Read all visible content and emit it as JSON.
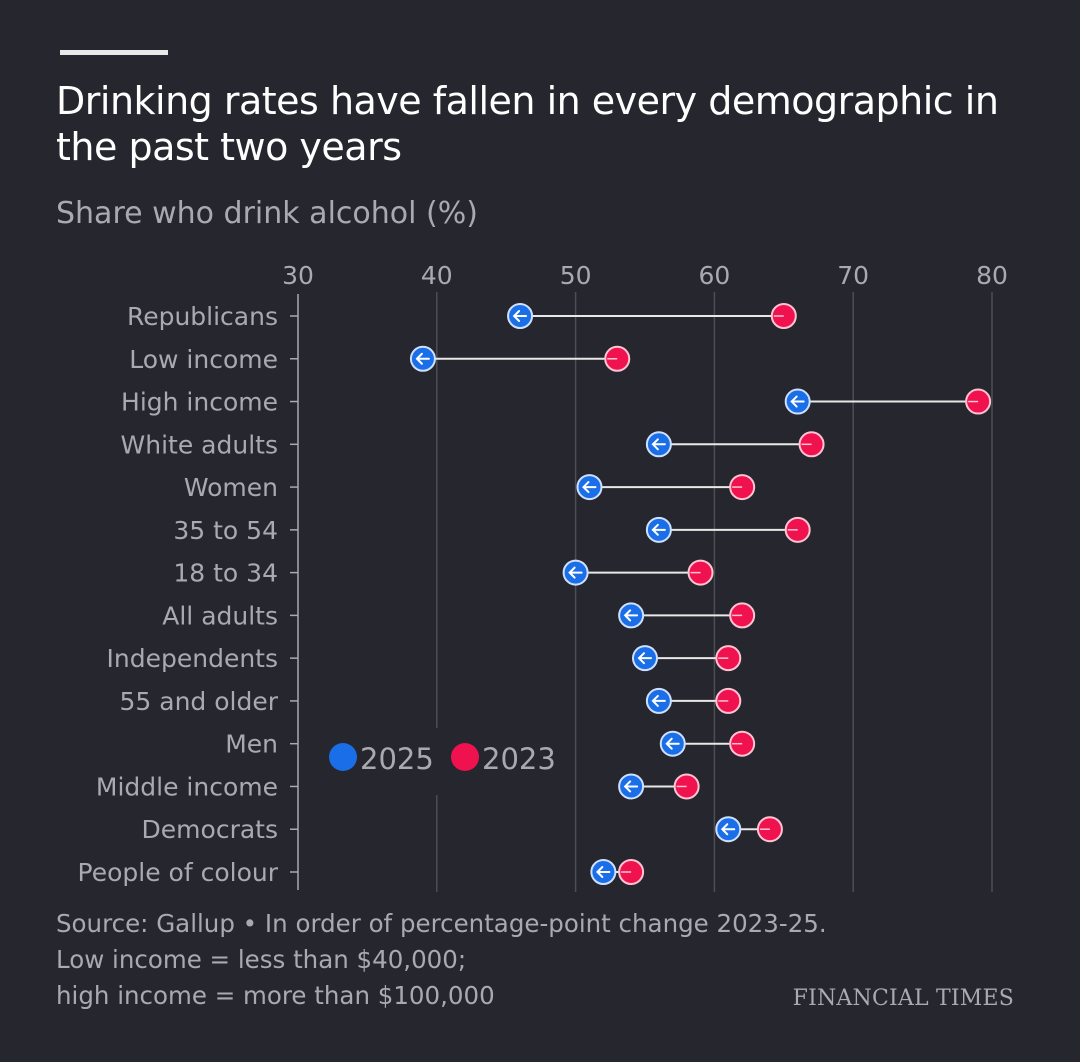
{
  "chart_data": {
    "type": "dot-arrow",
    "title": "Drinking rates have fallen in every demographic in the past two years",
    "subtitle": "Share who drink alcohol (%)",
    "xlim": [
      30,
      80
    ],
    "xticks": [
      "30",
      "40",
      "50",
      "60",
      "70",
      "80"
    ],
    "grid": true,
    "legend_position": "center-left",
    "legend": [
      {
        "name": "2025",
        "color": "#1a6ee8"
      },
      {
        "name": "2023",
        "color": "#f0114f"
      }
    ],
    "categories": [
      "Republicans",
      "Low income",
      "High income",
      "White adults",
      "Women",
      "35 to 54",
      "18 to 34",
      "All adults",
      "Independents",
      "55 and older",
      "Men",
      "Middle income",
      "Democrats",
      "People of colour"
    ],
    "series": [
      {
        "name": "2025",
        "values": [
          46,
          39,
          66,
          56,
          51,
          56,
          50,
          54,
          55,
          56,
          57,
          54,
          61,
          52
        ]
      },
      {
        "name": "2023",
        "values": [
          65,
          53,
          79,
          67,
          62,
          66,
          59,
          62,
          61,
          61,
          62,
          58,
          64,
          54
        ]
      }
    ]
  },
  "footer": {
    "source_line1": "Source: Gallup • In order of percentage-point change 2023-25.",
    "source_line2": "Low income = less than $40,000;",
    "source_line3": "high income = more than $100,000",
    "logo": "FINANCIAL TIMES"
  }
}
